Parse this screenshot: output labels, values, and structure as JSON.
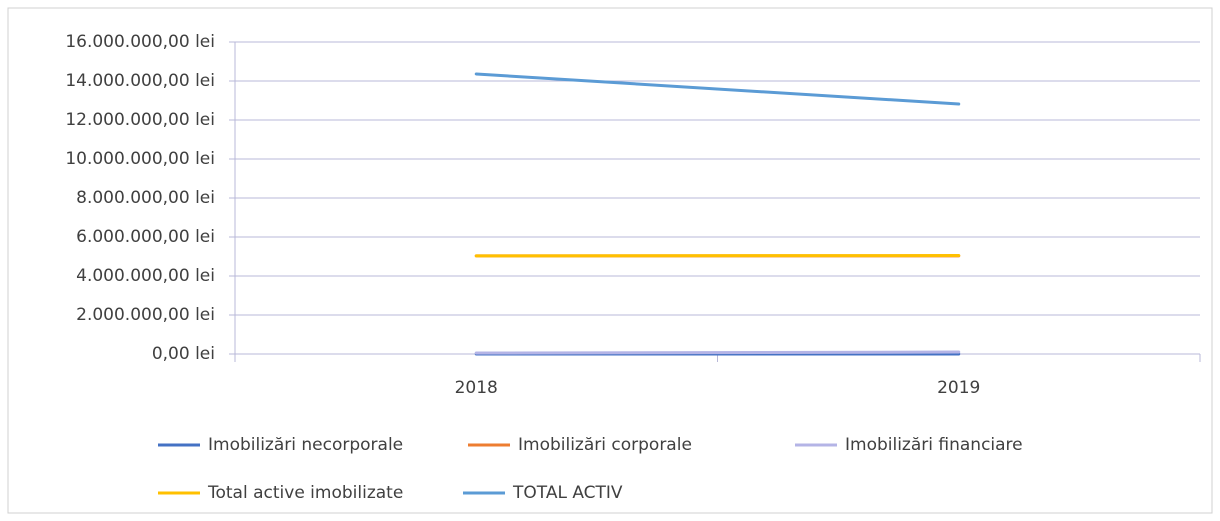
{
  "chart_data": {
    "type": "line",
    "categories": [
      "2018",
      "2019"
    ],
    "series": [
      {
        "name": "Imobilizări necorporale",
        "color": "#4472c4",
        "values": [
          0,
          0
        ]
      },
      {
        "name": "Imobilizări corporale",
        "color": "#ed7d31",
        "values": [
          5030000,
          5030000
        ]
      },
      {
        "name": "Imobilizări financiare",
        "color": "#b4b4e6",
        "values": [
          50000,
          100000
        ]
      },
      {
        "name": "Total active imobilizate",
        "color": "#ffc000",
        "values": [
          5030000,
          5050000
        ]
      },
      {
        "name": "TOTAL ACTIV",
        "color": "#5b9bd5",
        "values": [
          14360000,
          12820000
        ]
      }
    ],
    "ylim": [
      0,
      16000000
    ],
    "yticks": [
      {
        "value": 0,
        "label": "0,00 lei"
      },
      {
        "value": 2000000,
        "label": "2.000.000,00 lei"
      },
      {
        "value": 4000000,
        "label": "4.000.000,00 lei"
      },
      {
        "value": 6000000,
        "label": "6.000.000,00 lei"
      },
      {
        "value": 8000000,
        "label": "8.000.000,00 lei"
      },
      {
        "value": 10000000,
        "label": "10.000.000,00 lei"
      },
      {
        "value": 12000000,
        "label": "12.000.000,00 lei"
      },
      {
        "value": 14000000,
        "label": "14.000.000,00 lei"
      },
      {
        "value": 16000000,
        "label": "16.000.000,00 lei"
      }
    ],
    "grid": true
  }
}
